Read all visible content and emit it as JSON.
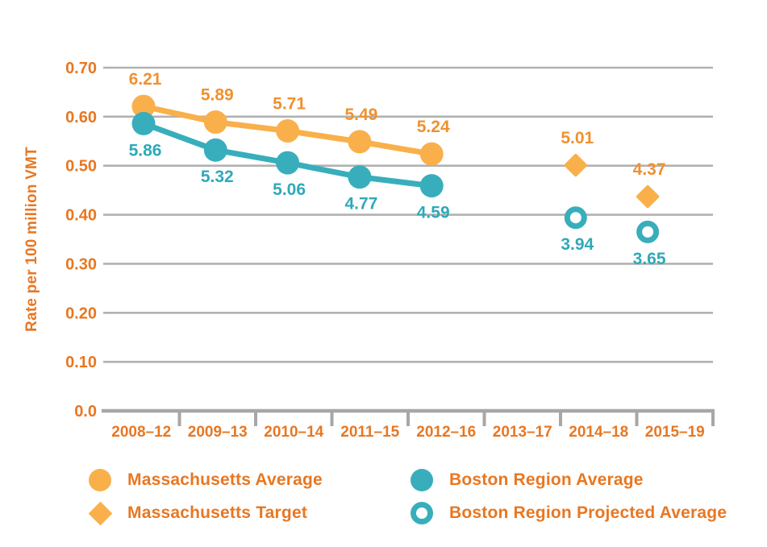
{
  "chart_data": {
    "type": "line",
    "title": "",
    "ylabel": "Rate per 100 million VMT",
    "xlabel": "",
    "x_categories": [
      "2008–12",
      "2009–13",
      "2010–14",
      "2011–15",
      "2012–16",
      "2013–17",
      "2014–18",
      "2015–19"
    ],
    "y_tick_labels": [
      "0.70",
      "0.60",
      "0.50",
      "0.40",
      "0.30",
      "0.20",
      "0.10",
      "0.0"
    ],
    "y_tick_values": [
      0.7,
      0.6,
      0.5,
      0.4,
      0.3,
      0.2,
      0.1,
      0.0
    ],
    "ylim": [
      0,
      0.7
    ],
    "grid": "horizontal gridlines only",
    "legend_position": "bottom",
    "plot_scale_divisor": 10,
    "series": [
      {
        "name": "Massachusetts Average",
        "marker": "circle",
        "line": true,
        "color": "#F9B04B",
        "label_color": "#F0912F",
        "label_side": "above",
        "x_indices": [
          0,
          1,
          2,
          3,
          4
        ],
        "categories": [
          "2008–12",
          "2009–13",
          "2010–14",
          "2011–15",
          "2012–16"
        ],
        "values": [
          6.21,
          5.89,
          5.71,
          5.49,
          5.24
        ]
      },
      {
        "name": "Boston Region Average",
        "marker": "circle",
        "line": true,
        "color": "#38AEBC",
        "label_color": "#2FA9B9",
        "label_side": "below",
        "x_indices": [
          0,
          1,
          2,
          3,
          4
        ],
        "categories": [
          "2008–12",
          "2009–13",
          "2010–14",
          "2011–15",
          "2012–16"
        ],
        "values": [
          5.86,
          5.32,
          5.06,
          4.77,
          4.59
        ]
      },
      {
        "name": "Massachusetts Target",
        "marker": "diamond",
        "line": false,
        "color": "#F9B04B",
        "label_color": "#F0912F",
        "label_side": "above",
        "x_indices": [
          6,
          7
        ],
        "categories": [
          "2014–18",
          "2015–19"
        ],
        "values": [
          5.01,
          4.37
        ]
      },
      {
        "name": "Boston Region Projected Average",
        "marker": "open-circle",
        "line": false,
        "color": "#38AEBC",
        "label_color": "#2FA9B9",
        "label_side": "below",
        "x_indices": [
          6,
          7
        ],
        "categories": [
          "2014–18",
          "2015–19"
        ],
        "values": [
          3.94,
          3.65
        ]
      }
    ],
    "legend": [
      {
        "label": "Massachusetts Average",
        "marker": "circle",
        "color": "#F9B04B"
      },
      {
        "label": "Massachusetts Target",
        "marker": "diamond",
        "color": "#F9B04B"
      },
      {
        "label": "Boston Region Average",
        "marker": "circle",
        "color": "#38AEBC"
      },
      {
        "label": "Boston Region Projected Average",
        "marker": "open-circle",
        "color": "#38AEBC"
      }
    ],
    "colors": {
      "axis_text": "#E87722",
      "grid_line": "#B1B1B1",
      "axis_line": "#A7A7A7",
      "background": "#FFFFFF"
    }
  }
}
